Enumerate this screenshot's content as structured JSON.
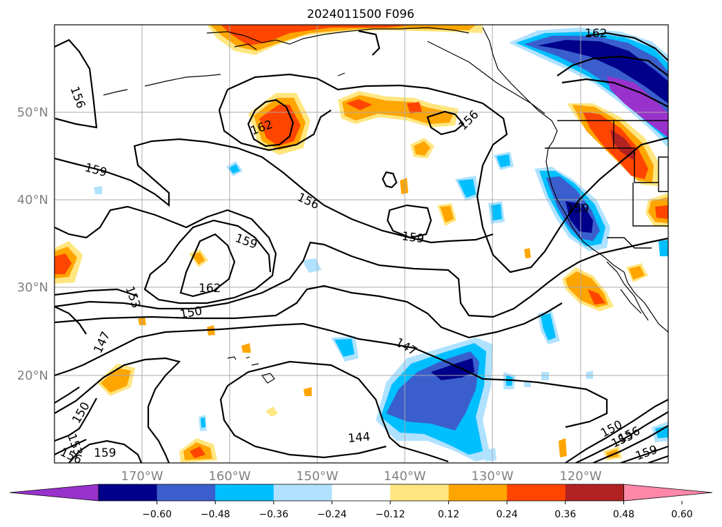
{
  "title": "2024011500 F096",
  "lat_labels": [
    "20°N",
    "30°N",
    "40°N",
    "50°N"
  ],
  "lon_labels": [
    "170°W",
    "160°W",
    "150°W",
    "140°W",
    "130°W",
    "120°W"
  ],
  "colorbar": {
    "tick_labels": [
      "−0.60",
      "−0.48",
      "−0.36",
      "−0.24",
      "−0.12",
      "0.12",
      "0.24",
      "0.36",
      "0.48",
      "0.60"
    ],
    "colors": [
      "#9932cc",
      "#00008b",
      "#3a5fcd",
      "#00bfff",
      "#b0e2ff",
      "#ffffff",
      "#ffe680",
      "#ffa500",
      "#ff4500",
      "#b22222",
      "#ff88aa"
    ]
  },
  "contour_labels": {
    "c162a": "162",
    "c162b": "162",
    "c162c": "162",
    "c156a": "156",
    "c156b": "156",
    "c156c": "156",
    "c159a": "159",
    "c159b": "159",
    "c159c": "159",
    "c159d": "159",
    "c159e": "159",
    "c159f": "159",
    "c153a": "153",
    "c153b": "153",
    "c150a": "150",
    "c150b": "150",
    "c150c": "150",
    "c147a": "147",
    "c147b": "147",
    "c144": "144"
  }
}
